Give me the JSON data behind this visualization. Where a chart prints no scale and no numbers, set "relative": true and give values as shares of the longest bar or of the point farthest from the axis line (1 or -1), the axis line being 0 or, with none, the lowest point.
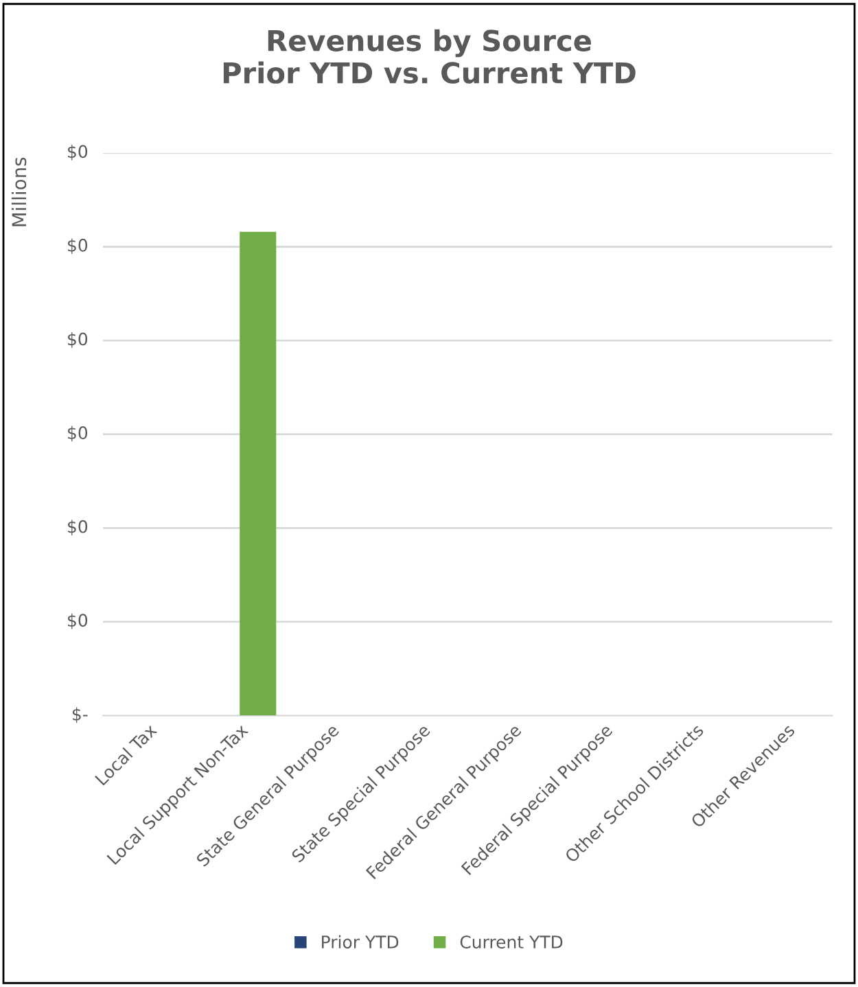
{
  "chart_data": {
    "type": "bar",
    "title": "Revenues by Source\nPrior YTD vs. Current YTD",
    "ylabel": "Millions",
    "categories": [
      "Local Tax",
      "Local Support Non-Tax",
      "State General Purpose",
      "State Special Purpose",
      "Federal General Purpose",
      "Federal Special Purpose",
      "Other School Districts",
      "Other Revenues"
    ],
    "series": [
      {
        "name": "Prior YTD",
        "color": "#264478",
        "values": [
          0,
          0,
          0,
          0,
          0,
          0,
          0,
          0
        ]
      },
      {
        "name": "Current YTD",
        "color": "#70ad47",
        "values": [
          0,
          1,
          0,
          0,
          0,
          0,
          0,
          0
        ]
      }
    ],
    "relative": true,
    "annotations": [
      "$-",
      "$0",
      "$0",
      "$0",
      "$0",
      "$0",
      "$0"
    ],
    "grid": "y",
    "legend": "bottom"
  }
}
